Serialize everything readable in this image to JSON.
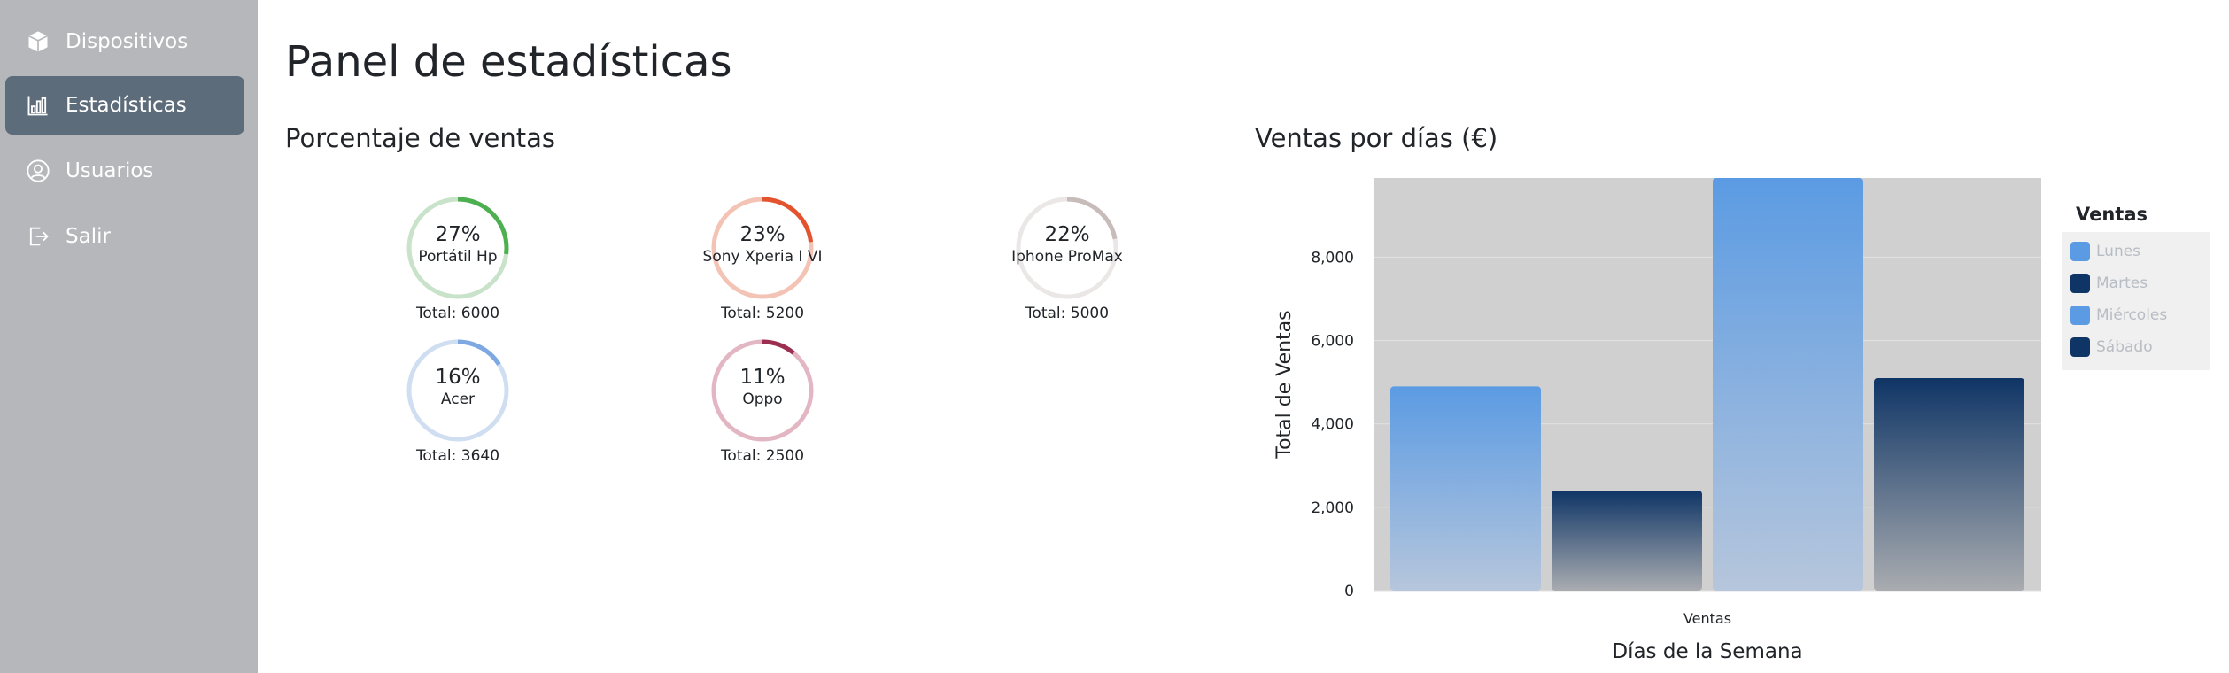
{
  "sidebar": {
    "items": [
      {
        "label": "Dispositivos",
        "icon": "box-icon"
      },
      {
        "label": "Estadísticas",
        "icon": "bar-chart-icon"
      },
      {
        "label": "Usuarios",
        "icon": "user-circle-icon"
      },
      {
        "label": "Salir",
        "icon": "logout-icon"
      }
    ]
  },
  "header": {
    "title": "Panel de estadísticas"
  },
  "sales_percent": {
    "title": "Porcentaje de ventas",
    "items": [
      {
        "percent": "27%",
        "name": "Portátil Hp",
        "total": "Total: 6000",
        "value": 27,
        "color": "#4caf50",
        "track": "#c8e3c9"
      },
      {
        "percent": "23%",
        "name": "Sony Xperia I VI",
        "total": "Total: 5200",
        "value": 23,
        "color": "#e2532e",
        "track": "#f3c3b5"
      },
      {
        "percent": "22%",
        "name": "Iphone ProMax",
        "total": "Total: 5000",
        "value": 22,
        "color": "#c8bcbb",
        "track": "#ebe7e6"
      },
      {
        "percent": "16%",
        "name": "Acer",
        "total": "Total: 3640",
        "value": 16,
        "color": "#7ea8e2",
        "track": "#d0def2"
      },
      {
        "percent": "11%",
        "name": "Oppo",
        "total": "Total: 2500",
        "value": 11,
        "color": "#9c2f50",
        "track": "#e3b6c3"
      }
    ]
  },
  "sales_by_day": {
    "title": "Ventas por días (€)"
  },
  "chart_data": {
    "type": "bar",
    "title": "Ventas por días (€)",
    "xlabel": "Días de la Semana",
    "ylabel": "Total de Ventas",
    "categories": [
      "Ventas"
    ],
    "series": [
      {
        "name": "Lunes",
        "values": [
          4900
        ],
        "color": "#5b9be3"
      },
      {
        "name": "Martes",
        "values": [
          2400
        ],
        "color": "#0f3566"
      },
      {
        "name": "Miércoles",
        "values": [
          9900
        ],
        "color": "#5b9be3"
      },
      {
        "name": "Sábado",
        "values": [
          5100
        ],
        "color": "#0f3566"
      }
    ],
    "ylim": [
      0,
      9900
    ],
    "yticks": [
      0,
      2000,
      4000,
      6000,
      8000
    ],
    "ytick_labels": [
      "0",
      "2,000",
      "4,000",
      "6,000",
      "8,000"
    ],
    "legend_title": "Ventas",
    "legend_position": "right"
  }
}
